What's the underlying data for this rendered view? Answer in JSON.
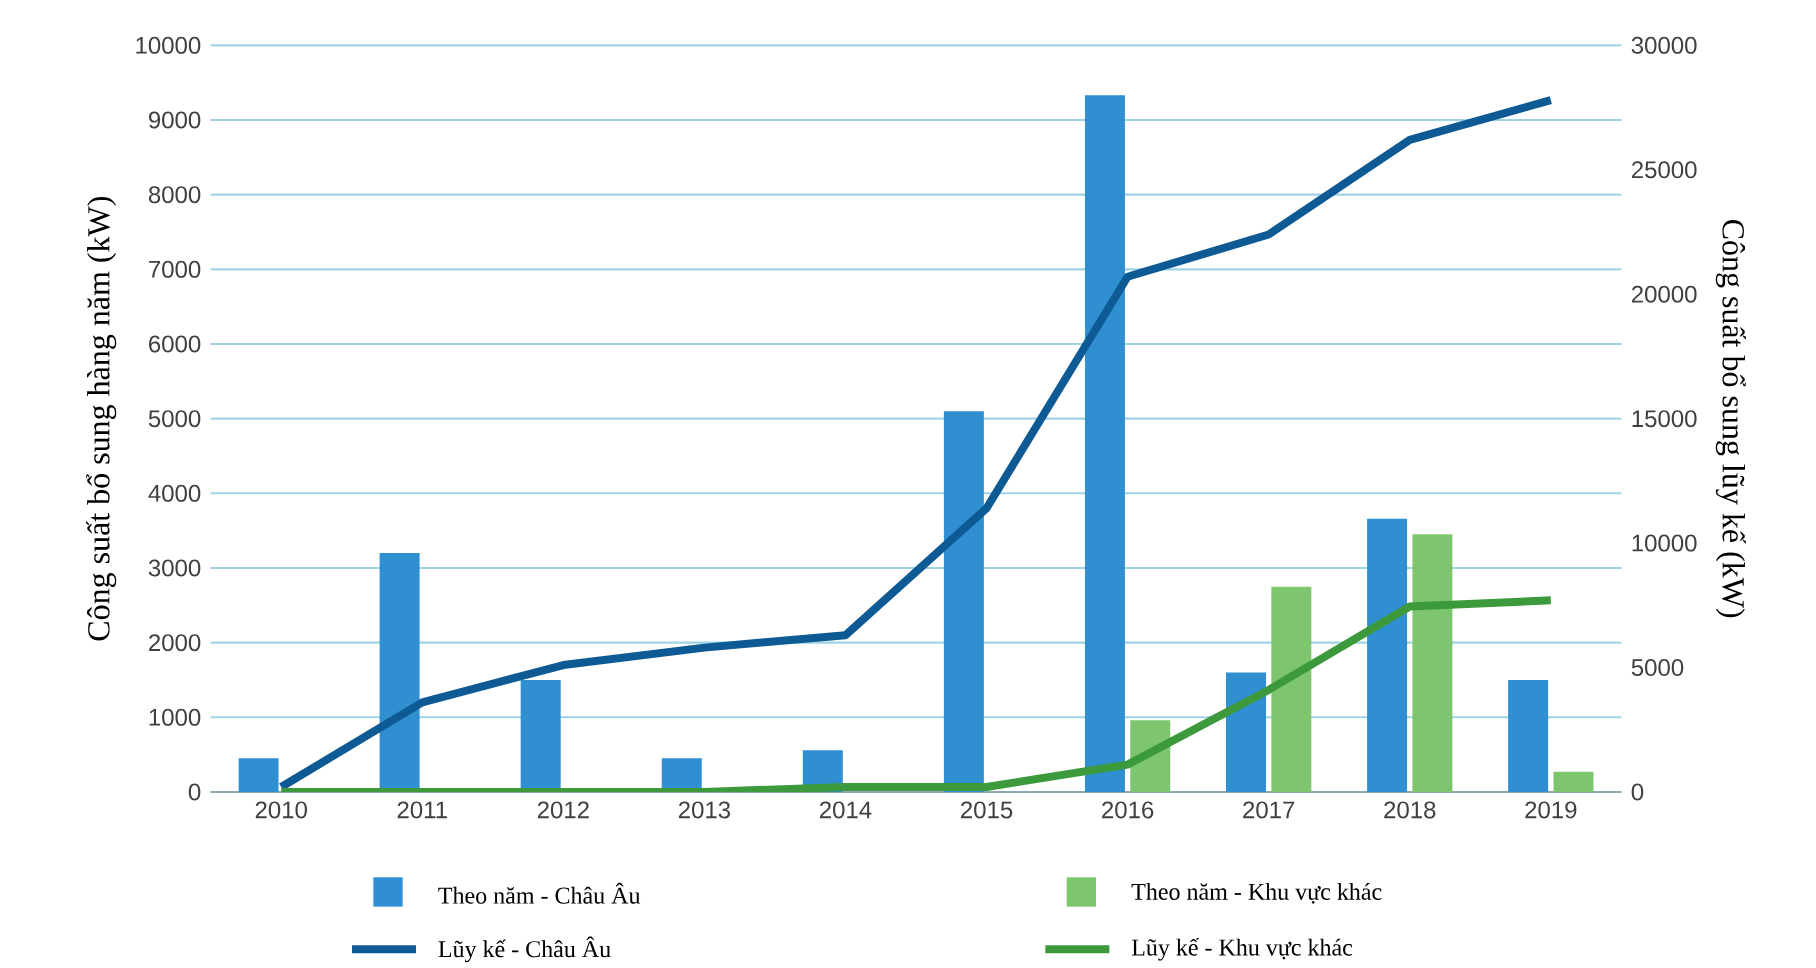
{
  "chart_data": {
    "type": "bar",
    "ylabel": "Công suất bổ sung hàng năm (kW)",
    "y2label": "Công suất bổ sung lũy kế (kW)",
    "categories": [
      "2010",
      "2011",
      "2012",
      "2013",
      "2014",
      "2015",
      "2016",
      "2017",
      "2018",
      "2019"
    ],
    "series": [
      {
        "name": "Theo năm - Châu Âu",
        "color": "#2f8fd1",
        "values": [
          450,
          3200,
          1500,
          450,
          560,
          5100,
          9330,
          1600,
          3660,
          1500
        ]
      },
      {
        "name": "Theo năm - Khu vực khác",
        "color": "#7dc56f",
        "values": [
          0,
          0,
          0,
          0,
          0,
          0,
          960,
          2750,
          3450,
          270
        ]
      },
      {
        "name": "Lũy kế - Châu Âu",
        "type": "line",
        "axis": "y2",
        "color": "#0d5a94",
        "values": [
          200,
          3600,
          5100,
          5800,
          6300,
          11400,
          20700,
          22400,
          26200,
          27800
        ]
      },
      {
        "name": "Lũy kế - Khu vực khác",
        "type": "line",
        "axis": "y2",
        "color": "#3c9a3c",
        "values": [
          0,
          0,
          0,
          0,
          200,
          200,
          1100,
          4100,
          7450,
          7700
        ]
      }
    ],
    "ylim": [
      0,
      10000
    ],
    "yticks": [
      0,
      1000,
      2000,
      3000,
      4000,
      5000,
      6000,
      7000,
      8000,
      9000,
      10000
    ],
    "y2lim": [
      0,
      30000
    ],
    "y2ticks": [
      0,
      5000,
      10000,
      15000,
      20000,
      25000,
      30000
    ],
    "grid": "y",
    "legend": "bottom"
  }
}
